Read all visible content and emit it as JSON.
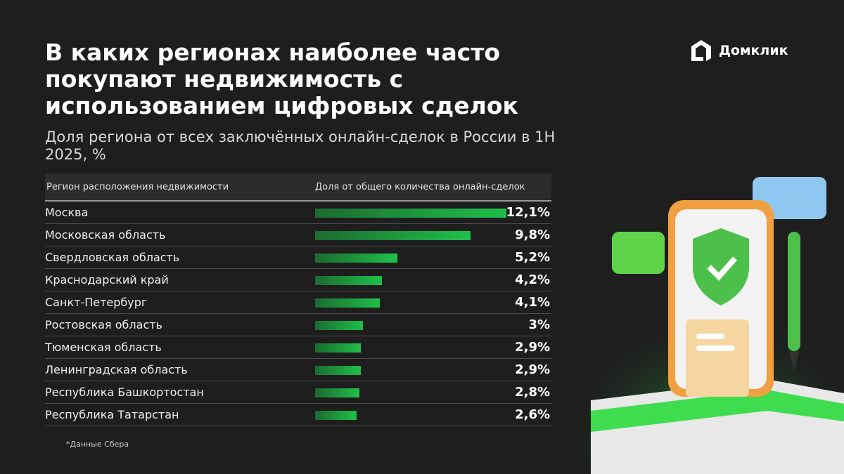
{
  "brand": {
    "name": "Домклик"
  },
  "chart_data": {
    "type": "bar",
    "orientation": "horizontal",
    "title": "В каких регионах наиболее часто покупают недвижимость с использованием цифровых сделок",
    "subtitle": "Доля региона от всех заключённых онлайн-сделок в России в 1H 2025, %",
    "column_headers": [
      "Регион расположения недвижимости",
      "Доля от общего количества онлайн-сделок"
    ],
    "categories": [
      "Москва",
      "Московская область",
      "Свердловская область",
      "Краснодарский край",
      "Санкт-Петербург",
      "Ростовская область",
      "Тюменская область",
      "Ленинградская область",
      "Республика Башкортостан",
      "Республика Татарстан"
    ],
    "values": [
      12.1,
      9.8,
      5.2,
      4.2,
      4.1,
      3,
      2.9,
      2.9,
      2.8,
      2.6
    ],
    "labels": [
      "12,1%",
      "9,8%",
      "5,2%",
      "4,2%",
      "4,1%",
      "3%",
      "2,9%",
      "2,9%",
      "2,8%",
      "2,6%"
    ],
    "bar_color": "#1fc04a",
    "note": "*Данные Сбера"
  }
}
